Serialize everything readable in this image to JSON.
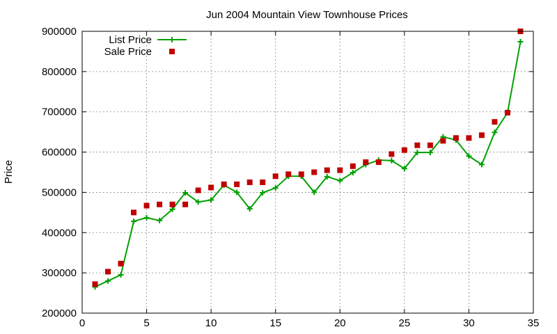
{
  "chart_data": {
    "type": "line",
    "title": "Jun 2004 Mountain View Townhouse Prices",
    "xlabel": "",
    "ylabel": "Price",
    "xlim": [
      0,
      35
    ],
    "ylim": [
      200000,
      900000
    ],
    "xticks": [
      "0",
      "5",
      "10",
      "15",
      "20",
      "25",
      "30",
      "35"
    ],
    "yticks": [
      "200000",
      "300000",
      "400000",
      "500000",
      "600000",
      "700000",
      "800000",
      "900000"
    ],
    "grid": true,
    "legend_position": "top-left",
    "x": [
      1,
      2,
      3,
      4,
      5,
      6,
      7,
      8,
      9,
      10,
      11,
      12,
      13,
      14,
      15,
      16,
      17,
      18,
      19,
      20,
      21,
      22,
      23,
      24,
      25,
      26,
      27,
      28,
      29,
      30,
      31,
      32,
      33,
      34
    ],
    "series": [
      {
        "name": "List Price",
        "style": "line+cross",
        "color": "#00a000",
        "values": [
          265000,
          280000,
          295000,
          428000,
          437000,
          430000,
          458000,
          499000,
          476000,
          481000,
          518000,
          500000,
          459000,
          499000,
          511000,
          540000,
          540000,
          500000,
          539000,
          529000,
          549000,
          569000,
          580000,
          579000,
          559000,
          599000,
          599000,
          638000,
          630000,
          590000,
          569000,
          649000,
          698000,
          874000
        ]
      },
      {
        "name": "Sale Price",
        "style": "square",
        "color": "#c00000",
        "values": [
          272000,
          303000,
          323000,
          450000,
          467000,
          470000,
          470000,
          470000,
          505000,
          512000,
          520000,
          520000,
          525000,
          525000,
          540000,
          545000,
          545000,
          550000,
          555000,
          555000,
          565000,
          575000,
          575000,
          595000,
          605000,
          617000,
          617000,
          628000,
          635000,
          635000,
          642000,
          675000,
          698000,
          900000
        ]
      }
    ]
  }
}
